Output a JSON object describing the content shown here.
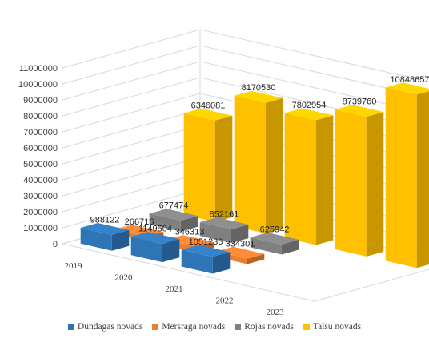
{
  "chart_data": {
    "type": "bar",
    "subtype": "3d-clustered-depth",
    "categories": [
      "2019",
      "2020",
      "2021",
      "2022",
      "2023"
    ],
    "ylim": [
      0,
      11000000
    ],
    "yticks": [
      "0",
      "1000000",
      "2000000",
      "3000000",
      "4000000",
      "5000000",
      "6000000",
      "7000000",
      "8000000",
      "9000000",
      "10000000",
      "11000000"
    ],
    "grid": true,
    "legend_position": "bottom",
    "series": [
      {
        "name": "Dundagas novads",
        "color": "#2e75b6",
        "values": [
          988122,
          1149504,
          1051236,
          null,
          null
        ],
        "labels": [
          "988122",
          "1149504",
          "1051236",
          "",
          ""
        ]
      },
      {
        "name": "Mērsraga novads",
        "color": "#ed7d31",
        "values": [
          266716,
          346313,
          334301,
          null,
          null
        ],
        "labels": [
          "266716",
          "346313",
          "334301",
          "",
          ""
        ]
      },
      {
        "name": "Rojas novads",
        "color": "#808080",
        "values": [
          677474,
          852161,
          625942,
          null,
          null
        ],
        "labels": [
          "677474",
          "852161",
          "625942",
          "",
          ""
        ]
      },
      {
        "name": "Talsu novads",
        "color": "#ffc000",
        "values": [
          6346081,
          8170530,
          7802954,
          8739760,
          10848657
        ],
        "labels": [
          "6346081",
          "8170530",
          "7802954",
          "8739760",
          "10848657"
        ]
      }
    ]
  }
}
